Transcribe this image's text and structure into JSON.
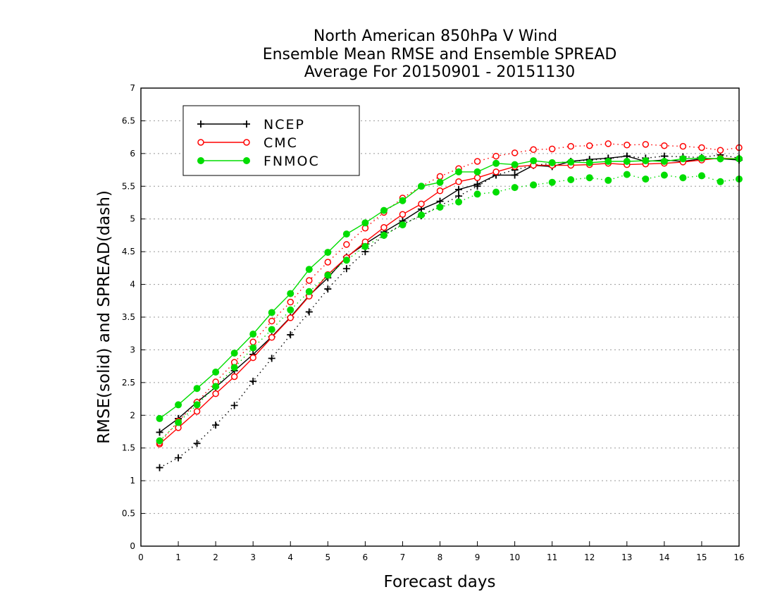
{
  "chart_data": {
    "type": "line",
    "title": [
      "North American 850hPa V Wind",
      "Ensemble Mean RMSE and Ensemble SPREAD",
      "Average For 20150901 - 20151130"
    ],
    "xlabel": "Forecast days",
    "ylabel": "RMSE(solid) and SPREAD(dash)",
    "xlim": [
      0,
      16
    ],
    "ylim": [
      0,
      7
    ],
    "xticks": [
      0,
      1,
      2,
      3,
      4,
      5,
      6,
      7,
      8,
      9,
      10,
      11,
      12,
      13,
      14,
      15,
      16
    ],
    "yticks": [
      0,
      0.5,
      1,
      1.5,
      2,
      2.5,
      3,
      3.5,
      4,
      4.5,
      5,
      5.5,
      6,
      6.5,
      7
    ],
    "ytick_labels": [
      "0",
      "0.5",
      "1",
      "1.5",
      "2",
      "2.5",
      "3",
      "3.5",
      "4",
      "4.5",
      "5",
      "5.5",
      "6",
      "6.5",
      "7"
    ],
    "grid": "horizontal dotted",
    "legend_position": "top-left",
    "x": [
      0.5,
      1,
      1.5,
      2,
      2.5,
      3,
      3.5,
      4,
      4.5,
      5,
      5.5,
      6,
      6.5,
      7,
      7.5,
      8,
      8.5,
      9,
      9.5,
      10,
      10.5,
      11,
      11.5,
      12,
      12.5,
      13,
      13.5,
      14,
      14.5,
      15,
      15.5,
      16
    ],
    "series": [
      {
        "name": "NCEP",
        "metric": "RMSE",
        "color": "#000000",
        "marker": "plus",
        "values": [
          1.74,
          1.95,
          2.2,
          2.43,
          2.68,
          2.93,
          3.2,
          3.5,
          3.83,
          4.1,
          4.42,
          4.62,
          4.8,
          4.97,
          5.15,
          5.27,
          5.45,
          5.53,
          5.67,
          5.67,
          5.82,
          5.8,
          5.88,
          5.91,
          5.93,
          5.96,
          5.88,
          5.9,
          5.88,
          5.92,
          5.92,
          5.9
        ]
      },
      {
        "name": "NCEP",
        "metric": "SPREAD",
        "color": "#000000",
        "marker": "plus",
        "values": [
          1.2,
          1.35,
          1.57,
          1.85,
          2.15,
          2.52,
          2.87,
          3.23,
          3.58,
          3.93,
          4.24,
          4.5,
          4.75,
          4.92,
          5.05,
          5.2,
          5.35,
          5.5,
          5.67,
          5.75,
          5.82,
          5.85,
          5.88,
          5.9,
          5.92,
          5.96,
          5.93,
          5.96,
          5.95,
          5.94,
          5.98,
          5.93
        ]
      },
      {
        "name": "CMC",
        "metric": "RMSE",
        "color": "#ff0000",
        "marker": "open-circle",
        "values": [
          1.56,
          1.81,
          2.06,
          2.33,
          2.59,
          2.88,
          3.19,
          3.49,
          3.82,
          4.15,
          4.41,
          4.65,
          4.87,
          5.07,
          5.23,
          5.43,
          5.57,
          5.63,
          5.72,
          5.8,
          5.82,
          5.82,
          5.82,
          5.83,
          5.85,
          5.83,
          5.84,
          5.85,
          5.87,
          5.9,
          5.93,
          5.92
        ]
      },
      {
        "name": "CMC",
        "metric": "SPREAD",
        "color": "#ff0000",
        "marker": "open-circle",
        "values": [
          1.58,
          1.91,
          2.2,
          2.51,
          2.81,
          3.12,
          3.44,
          3.73,
          4.06,
          4.34,
          4.61,
          4.86,
          5.1,
          5.32,
          5.5,
          5.65,
          5.77,
          5.88,
          5.96,
          6.01,
          6.06,
          6.07,
          6.11,
          6.12,
          6.15,
          6.13,
          6.14,
          6.12,
          6.11,
          6.09,
          6.05,
          6.09
        ]
      },
      {
        "name": "FNMOC",
        "metric": "RMSE",
        "color": "#00dd00",
        "marker": "filled-circle",
        "values": [
          1.95,
          2.16,
          2.41,
          2.66,
          2.95,
          3.24,
          3.57,
          3.86,
          4.23,
          4.49,
          4.77,
          4.94,
          5.13,
          5.28,
          5.5,
          5.56,
          5.72,
          5.72,
          5.85,
          5.83,
          5.89,
          5.86,
          5.87,
          5.86,
          5.88,
          5.88,
          5.89,
          5.88,
          5.92,
          5.93,
          5.92,
          5.92
        ]
      },
      {
        "name": "FNMOC",
        "metric": "SPREAD",
        "color": "#00dd00",
        "marker": "filled-circle",
        "values": [
          1.61,
          1.89,
          2.16,
          2.44,
          2.73,
          3.03,
          3.31,
          3.61,
          3.89,
          4.14,
          4.37,
          4.58,
          4.75,
          4.91,
          5.06,
          5.18,
          5.26,
          5.38,
          5.41,
          5.48,
          5.52,
          5.56,
          5.6,
          5.63,
          5.59,
          5.68,
          5.61,
          5.67,
          5.63,
          5.66,
          5.57,
          5.61
        ]
      }
    ]
  }
}
